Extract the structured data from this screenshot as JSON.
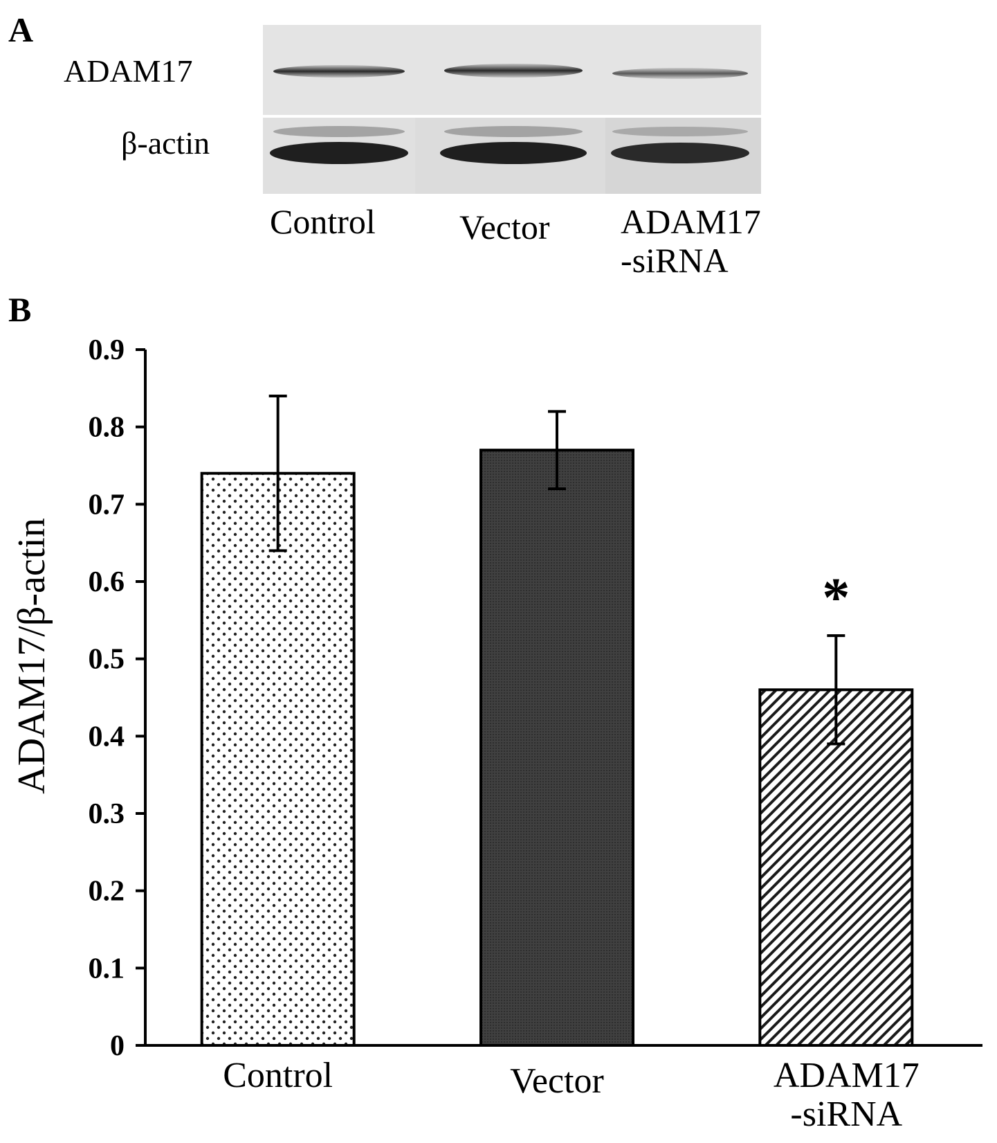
{
  "panel_a": {
    "letter": "A",
    "row_labels": [
      "ADAM17",
      "β-actin"
    ],
    "lanes": [
      {
        "lines": [
          "Control"
        ]
      },
      {
        "lines": [
          "Vector"
        ]
      },
      {
        "lines": [
          "ADAM17",
          "-siRNA"
        ]
      }
    ]
  },
  "panel_b": {
    "letter": "B"
  },
  "chart_data": {
    "type": "bar",
    "categories": [
      {
        "lines": [
          "Control"
        ]
      },
      {
        "lines": [
          "Vector"
        ]
      },
      {
        "lines": [
          "ADAM17",
          "-siRNA"
        ]
      }
    ],
    "values": [
      0.74,
      0.77,
      0.46
    ],
    "error": [
      0.1,
      0.05,
      0.07
    ],
    "annotations": [
      "",
      "",
      "*"
    ],
    "xlabel": "",
    "ylabel": "ADAM17/β-actin",
    "ylim": [
      0,
      0.9
    ],
    "yticks": [
      "0",
      "0.1",
      "0.2",
      "0.3",
      "0.4",
      "0.5",
      "0.6",
      "0.7",
      "0.8",
      "0.9"
    ],
    "patterns": [
      "dots",
      "dark",
      "diagonal"
    ],
    "grid": false,
    "legend": "none"
  }
}
